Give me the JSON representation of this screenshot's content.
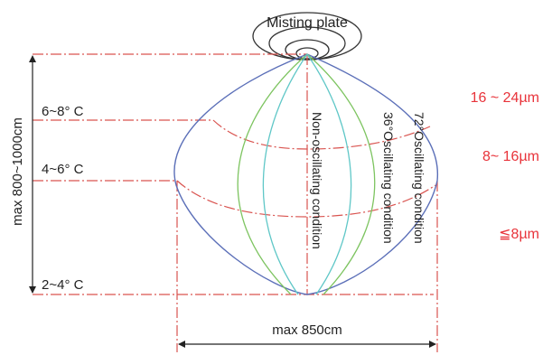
{
  "title": "Misting plate",
  "height_label": "max 800~1000cm",
  "width_label": "max 850cm",
  "temperature_levels": [
    "6~8° C",
    "4~6° C",
    "2~4° C"
  ],
  "conditions": [
    "Non-oscillating condition",
    "36°Oscillating condition",
    "72°Oscillating condition"
  ],
  "droplet_sizes": [
    "16 ~ 24µm",
    "8~ 16µm",
    "≦8µm"
  ],
  "colors": {
    "dashdot": "#d9534f",
    "droplet_text": "#e8333a",
    "outer_envelope": "#5b6fb8",
    "green_curve": "#7dc460",
    "cyan_curve": "#5fc7c7",
    "text": "#222222"
  }
}
